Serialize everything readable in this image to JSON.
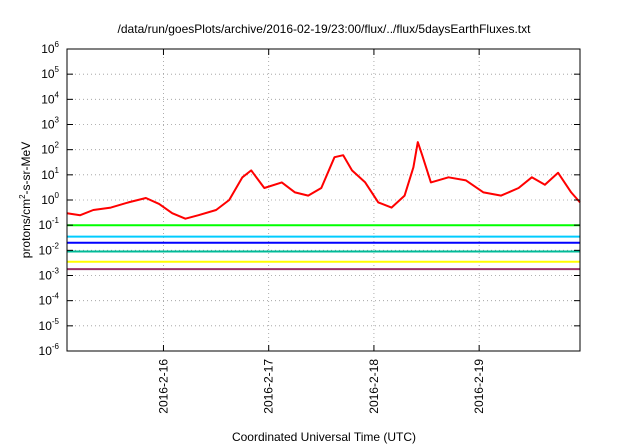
{
  "chart_data": {
    "type": "line",
    "title": "/data/run/goesPlots/archive/2016-02-19/23:00/flux/../flux/5daysEarthFluxes.txt",
    "xlabel": "Coordinated Universal Time (UTC)",
    "ylabel": {
      "base": "protons/cm",
      "exp": "2",
      "rest": "-s-sr-MeV"
    },
    "y_scale": "log",
    "ylim": [
      1e-06,
      1000000.0
    ],
    "xlim": [
      "2016-02-15 02:00",
      "2016-02-19 23:00"
    ],
    "grid": true,
    "legend": "none",
    "x_ticks": [
      {
        "date": "2016-02-16",
        "label": "2016-2-16"
      },
      {
        "date": "2016-02-17",
        "label": "2016-2-17"
      },
      {
        "date": "2016-02-18",
        "label": "2016-2-18"
      },
      {
        "date": "2016-02-19",
        "label": "2016-2-19"
      }
    ],
    "y_ticks": [
      {
        "exp": -6,
        "label": "10",
        "sup": "-6"
      },
      {
        "exp": -5,
        "label": "10",
        "sup": "-5"
      },
      {
        "exp": -4,
        "label": "10",
        "sup": "-4"
      },
      {
        "exp": -3,
        "label": "10",
        "sup": "-3"
      },
      {
        "exp": -2,
        "label": "10",
        "sup": "-2"
      },
      {
        "exp": -1,
        "label": "10",
        "sup": "-1"
      },
      {
        "exp": 0,
        "label": "10",
        "sup": "0"
      },
      {
        "exp": 1,
        "label": "10",
        "sup": "1"
      },
      {
        "exp": 2,
        "label": "10",
        "sup": "2"
      },
      {
        "exp": 3,
        "label": "10",
        "sup": "3"
      },
      {
        "exp": 4,
        "label": "10",
        "sup": "4"
      },
      {
        "exp": 5,
        "label": "10",
        "sup": "5"
      },
      {
        "exp": 6,
        "label": "10",
        "sup": "6"
      }
    ],
    "series": [
      {
        "color": "#ff0000",
        "points": [
          [
            "2016-02-15 02:00",
            0.3
          ],
          [
            "2016-02-15 05:00",
            0.25
          ],
          [
            "2016-02-15 08:00",
            0.4
          ],
          [
            "2016-02-15 12:00",
            0.5
          ],
          [
            "2016-02-15 16:00",
            0.8
          ],
          [
            "2016-02-15 20:00",
            1.2
          ],
          [
            "2016-02-15 23:00",
            0.7
          ],
          [
            "2016-02-16 02:00",
            0.3
          ],
          [
            "2016-02-16 05:00",
            0.18
          ],
          [
            "2016-02-16 08:00",
            0.25
          ],
          [
            "2016-02-16 12:00",
            0.4
          ],
          [
            "2016-02-16 15:00",
            1.0
          ],
          [
            "2016-02-16 18:00",
            8
          ],
          [
            "2016-02-16 20:00",
            15
          ],
          [
            "2016-02-16 23:00",
            3
          ],
          [
            "2016-02-17 03:00",
            5
          ],
          [
            "2016-02-17 06:00",
            2
          ],
          [
            "2016-02-17 09:00",
            1.5
          ],
          [
            "2016-02-17 12:00",
            3
          ],
          [
            "2016-02-17 15:00",
            50
          ],
          [
            "2016-02-17 17:00",
            60
          ],
          [
            "2016-02-17 19:00",
            15
          ],
          [
            "2016-02-17 22:00",
            5
          ],
          [
            "2016-02-18 01:00",
            0.8
          ],
          [
            "2016-02-18 04:00",
            0.5
          ],
          [
            "2016-02-18 07:00",
            1.5
          ],
          [
            "2016-02-18 09:00",
            20
          ],
          [
            "2016-02-18 10:00",
            200
          ],
          [
            "2016-02-18 11:00",
            60
          ],
          [
            "2016-02-18 13:00",
            5
          ],
          [
            "2016-02-18 17:00",
            8
          ],
          [
            "2016-02-18 21:00",
            6
          ],
          [
            "2016-02-19 01:00",
            2
          ],
          [
            "2016-02-19 05:00",
            1.5
          ],
          [
            "2016-02-19 09:00",
            3
          ],
          [
            "2016-02-19 12:00",
            8
          ],
          [
            "2016-02-19 15:00",
            4
          ],
          [
            "2016-02-19 18:00",
            12
          ],
          [
            "2016-02-19 21:00",
            2
          ],
          [
            "2016-02-19 23:00",
            0.8
          ]
        ]
      },
      {
        "color": "#00ff00",
        "points": [
          [
            "2016-02-15 02:00",
            0.1
          ],
          [
            "2016-02-19 23:00",
            0.1
          ]
        ]
      },
      {
        "color": "#00ccff",
        "points": [
          [
            "2016-02-15 02:00",
            0.035
          ],
          [
            "2016-02-19 23:00",
            0.035
          ]
        ]
      },
      {
        "color": "#0000ff",
        "points": [
          [
            "2016-02-15 02:00",
            0.02
          ],
          [
            "2016-02-19 23:00",
            0.02
          ]
        ]
      },
      {
        "color": "#00bb99",
        "points": [
          [
            "2016-02-15 02:00",
            0.009
          ],
          [
            "2016-02-19 23:00",
            0.009
          ]
        ]
      },
      {
        "color": "#ffff00",
        "points": [
          [
            "2016-02-15 02:00",
            0.0035
          ],
          [
            "2016-02-19 23:00",
            0.0035
          ]
        ]
      },
      {
        "color": "#993366",
        "points": [
          [
            "2016-02-15 02:00",
            0.0018
          ],
          [
            "2016-02-19 23:00",
            0.0018
          ]
        ]
      }
    ]
  }
}
